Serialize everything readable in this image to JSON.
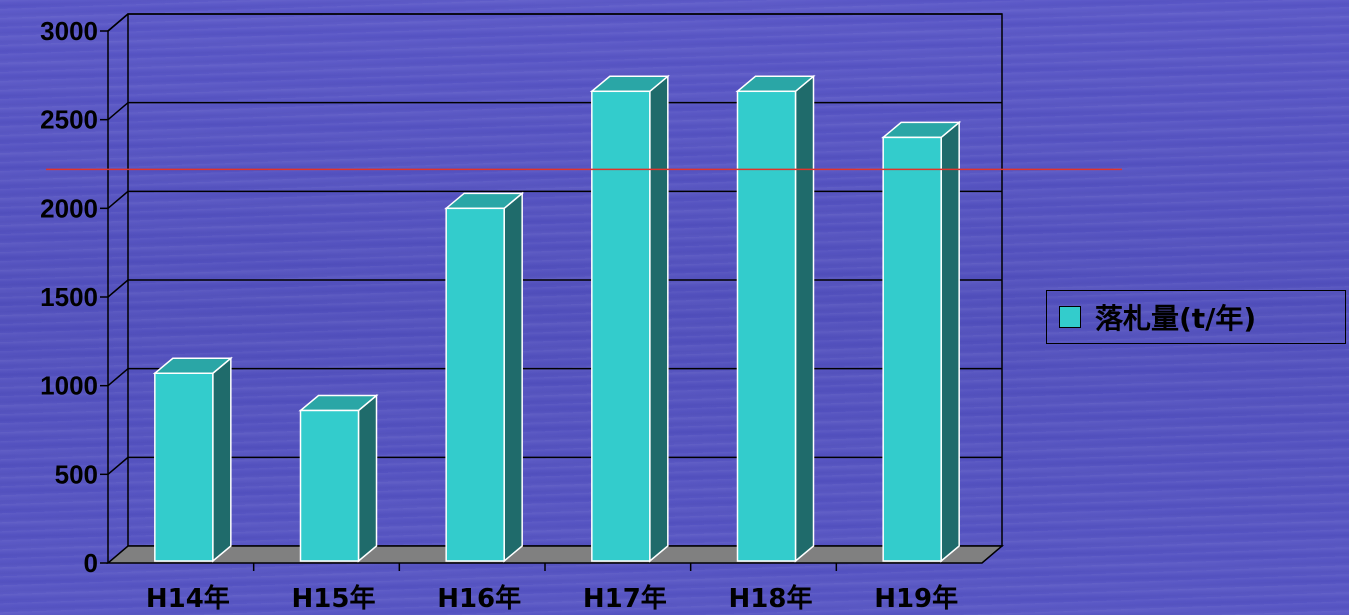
{
  "chart_data": {
    "type": "bar",
    "categories": [
      "H14年",
      "H15年",
      "H16年",
      "H17年",
      "H18年",
      "H19年"
    ],
    "series": [
      {
        "name": "落札量(t/年)",
        "values": [
          1070,
          860,
          2000,
          2660,
          2660,
          2400
        ]
      }
    ],
    "y_ticks": [
      "0",
      "500",
      "1000",
      "1500",
      "2000",
      "2500",
      "3000"
    ],
    "ylim": [
      0,
      3000
    ],
    "reference_line_value": 2220,
    "grid": true,
    "legend": "right",
    "three_d": true
  },
  "colors": {
    "bar_front": "#33cccc",
    "bar_side": "#1f6b6b",
    "bar_top": "#2aa6a6",
    "reference_line": "#e0332b",
    "floor": "#808080"
  },
  "legend": {
    "label": "落札量(t/年)"
  }
}
